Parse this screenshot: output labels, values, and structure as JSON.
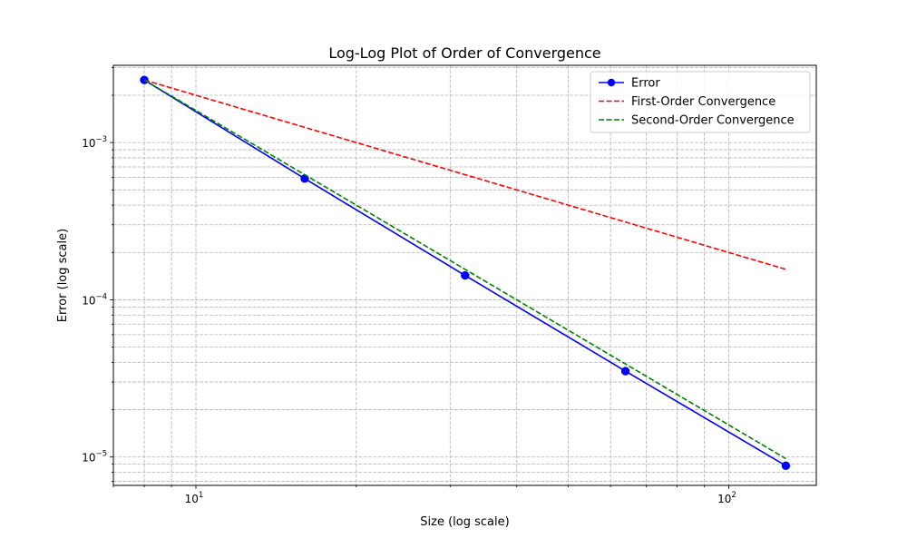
{
  "chart_data": {
    "type": "line",
    "title": "Log-Log Plot of Order of Convergence",
    "xlabel": "Size (log scale)",
    "ylabel": "Error (log scale)",
    "xscale": "log",
    "yscale": "log",
    "xlim": [
      7.0,
      146.0
    ],
    "ylim": [
      6.6e-06,
      0.0031
    ],
    "grid": true,
    "grid_style": "dashed",
    "legend_position": "top-right",
    "x_ticks": [
      {
        "value": 10,
        "base": "10",
        "exp": "1"
      },
      {
        "value": 100,
        "base": "10",
        "exp": "2"
      }
    ],
    "y_ticks": [
      {
        "value": 1e-05,
        "base": "10",
        "exp": "−5"
      },
      {
        "value": 0.0001,
        "base": "10",
        "exp": "−4"
      },
      {
        "value": 0.001,
        "base": "10",
        "exp": "−3"
      }
    ],
    "series": [
      {
        "name": "Error",
        "color": "#0000ff",
        "style": "solid",
        "marker": "circle",
        "x": [
          8,
          16,
          32,
          64,
          128
        ],
        "y": [
          0.0025,
          0.00059,
          0.000143,
          3.52e-05,
          8.8e-06
        ]
      },
      {
        "name": "First-Order Convergence",
        "color": "#ff0000",
        "style": "dashed",
        "marker": "none",
        "x": [
          8,
          128
        ],
        "y": [
          0.0025,
          0.00015625
        ]
      },
      {
        "name": "Second-Order Convergence",
        "color": "#008000",
        "style": "dashed",
        "marker": "none",
        "x": [
          8,
          128
        ],
        "y": [
          0.0025,
          9.7656e-06
        ]
      }
    ]
  }
}
